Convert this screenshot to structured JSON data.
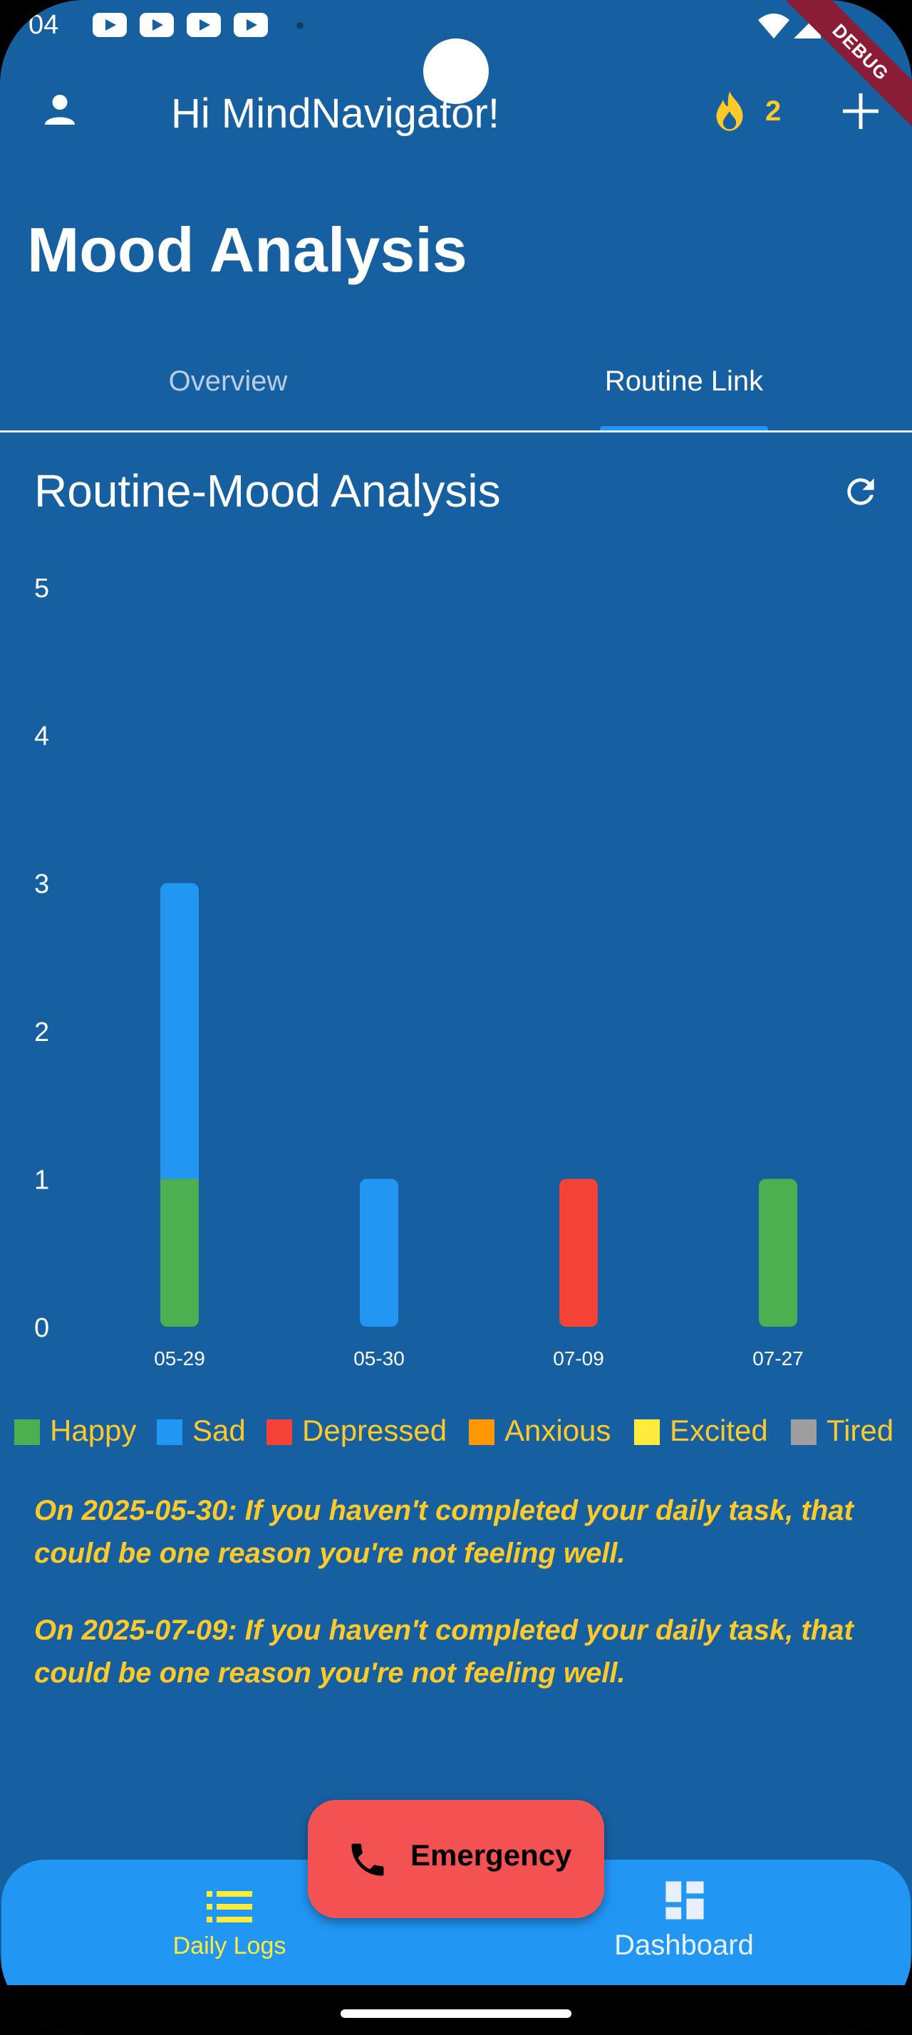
{
  "status_bar": {
    "time": "04"
  },
  "debug_banner": "DEBUG",
  "app_bar": {
    "greeting": "Hi MindNavigator!",
    "streak_count": "2"
  },
  "page_title": "Mood Analysis",
  "tabs": [
    {
      "label": "Overview",
      "selected": false
    },
    {
      "label": "Routine Link",
      "selected": true
    }
  ],
  "section_title": "Routine-Mood Analysis",
  "chart_data": {
    "type": "bar",
    "stacked": true,
    "categories": [
      "05-29",
      "05-30",
      "07-09",
      "07-27"
    ],
    "series": [
      {
        "name": "Happy",
        "color": "#4CAF50",
        "values": [
          1,
          0,
          0,
          1
        ]
      },
      {
        "name": "Sad",
        "color": "#2196F3",
        "values": [
          2,
          1,
          0,
          0
        ]
      },
      {
        "name": "Depressed",
        "color": "#F44336",
        "values": [
          0,
          0,
          1,
          0
        ]
      },
      {
        "name": "Anxious",
        "color": "#FF9800",
        "values": [
          0,
          0,
          0,
          0
        ]
      },
      {
        "name": "Excited",
        "color": "#FFEB3B",
        "values": [
          0,
          0,
          0,
          0
        ]
      },
      {
        "name": "Tired",
        "color": "#9E9E9E",
        "values": [
          0,
          0,
          0,
          0
        ]
      }
    ],
    "yticks": [
      "0",
      "1",
      "2",
      "3",
      "4",
      "5"
    ],
    "ylim": [
      0,
      5
    ],
    "grid": false,
    "legend_position": "bottom"
  },
  "legend": [
    {
      "label": "Happy",
      "color": "#4CAF50"
    },
    {
      "label": "Sad",
      "color": "#2196F3"
    },
    {
      "label": "Depressed",
      "color": "#F44336"
    },
    {
      "label": "Anxious",
      "color": "#FF9800"
    },
    {
      "label": "Excited",
      "color": "#FFEB3B"
    },
    {
      "label": "Tired",
      "color": "#9E9E9E"
    }
  ],
  "insights": [
    "On 2025-05-30: If you haven't completed your daily task, that could be one reason you're not feeling well.",
    "On 2025-07-09: If you haven't completed your daily task, that could be one reason you're not feeling well."
  ],
  "emergency_label": "Emergency",
  "bottom_nav": [
    {
      "label": "Daily Logs",
      "icon": "list-icon",
      "selected": true
    },
    {
      "label": "Dashboard",
      "icon": "dashboard-icon",
      "selected": false
    }
  ],
  "colors": {
    "background": "#1660A2",
    "accent": "#FFCA28",
    "nav": "#2196F3",
    "emergency": "#F45252"
  }
}
